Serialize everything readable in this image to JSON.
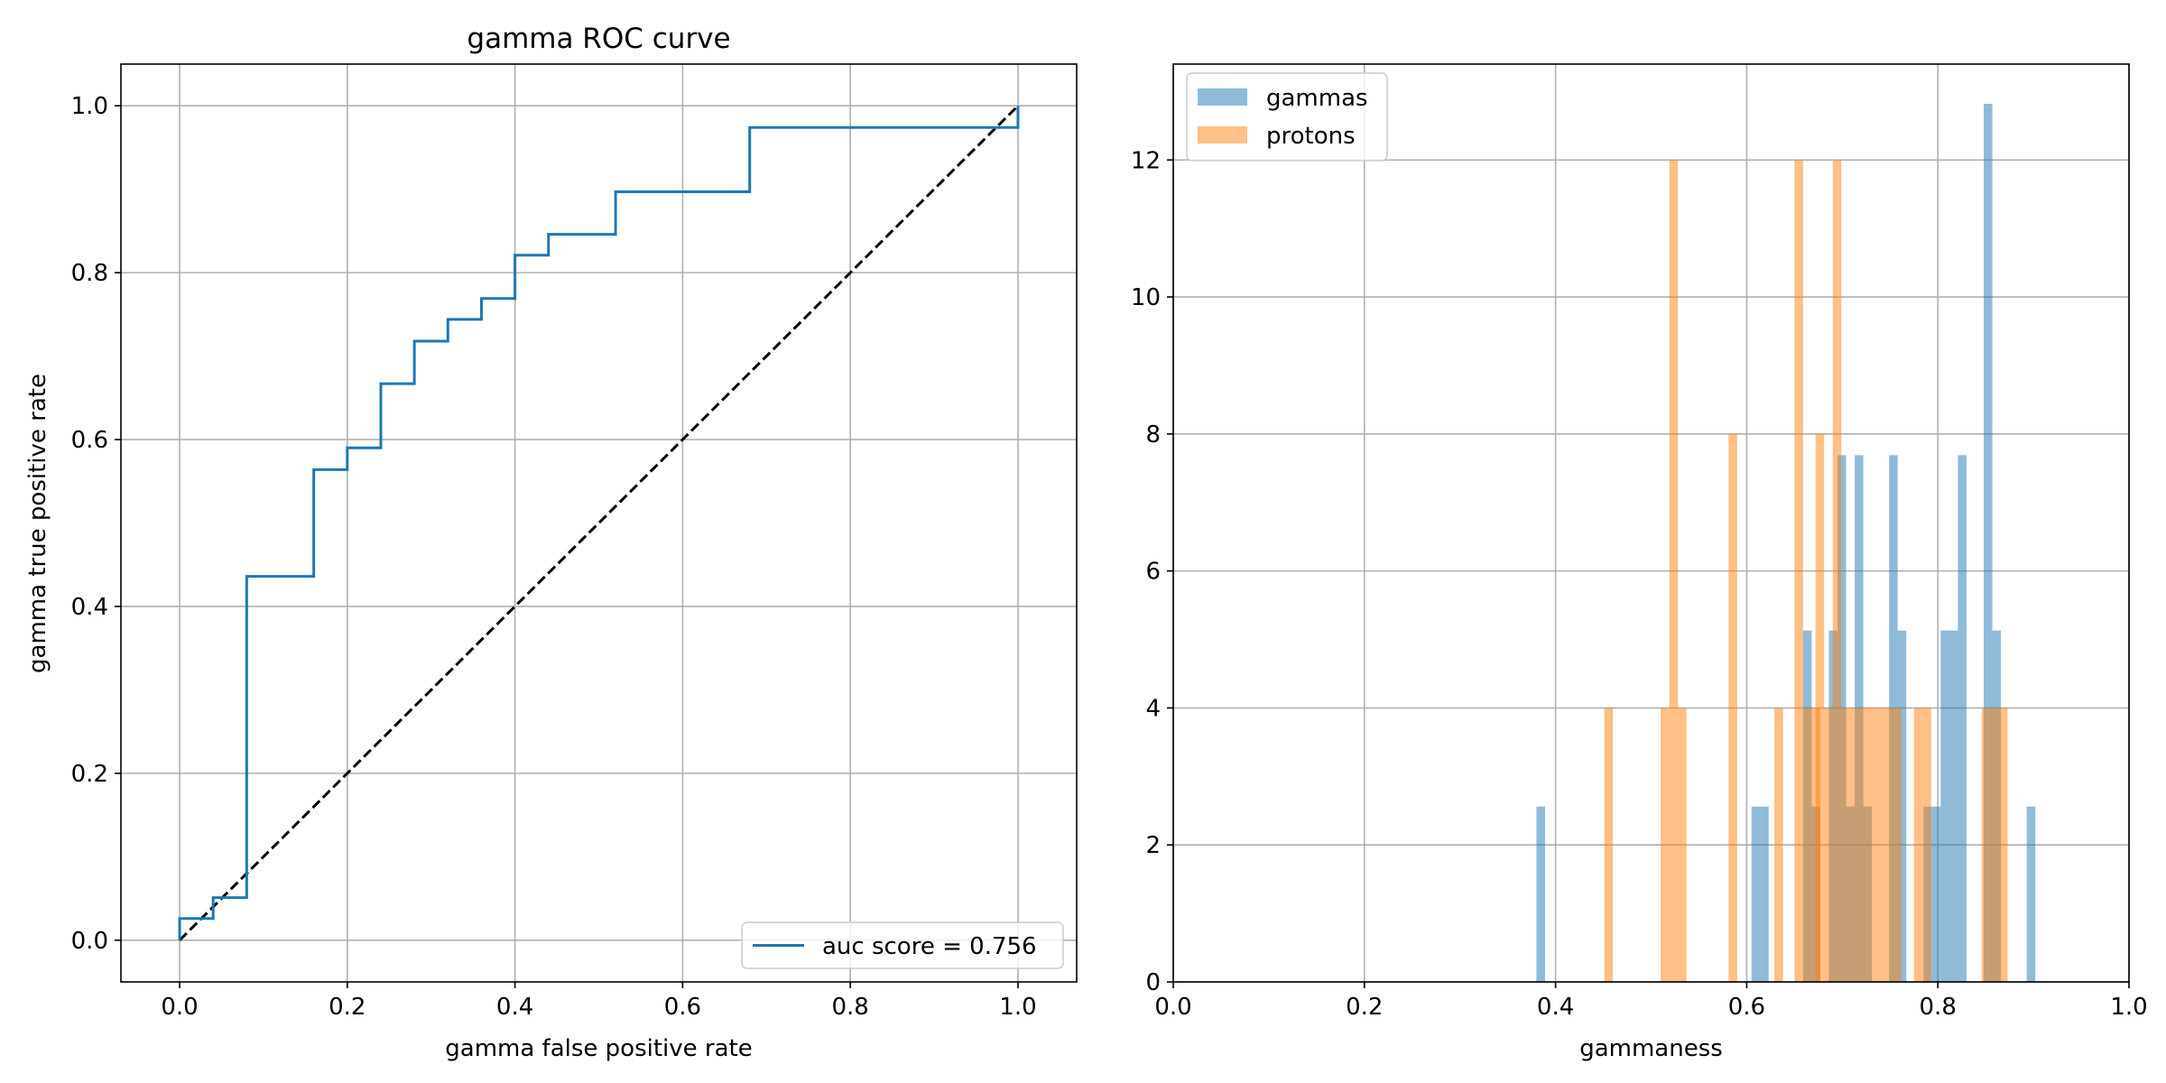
{
  "chart_data": [
    {
      "type": "line",
      "title": "gamma ROC curve",
      "xlabel": "gamma false positive rate",
      "ylabel": "gamma true positive rate",
      "xlim": [
        -0.07,
        1.07
      ],
      "ylim": [
        -0.05,
        1.05
      ],
      "grid": true,
      "xticks": [
        0.0,
        0.2,
        0.4,
        0.6,
        0.8,
        1.0
      ],
      "xtick_labels": [
        "0.0",
        "0.2",
        "0.4",
        "0.6",
        "0.8",
        "1.0"
      ],
      "yticks": [
        0.0,
        0.2,
        0.4,
        0.6,
        0.8,
        1.0
      ],
      "ytick_labels": [
        "0.0",
        "0.2",
        "0.4",
        "0.6",
        "0.8",
        "1.0"
      ],
      "legend_position": "lower-right",
      "series": [
        {
          "name": "auc score = 0.756",
          "color": "#1f77b4",
          "style": "solid",
          "x": [
            0.0,
            0.0,
            0.04,
            0.04,
            0.08,
            0.08,
            0.16,
            0.16,
            0.2,
            0.2,
            0.24,
            0.24,
            0.28,
            0.28,
            0.32,
            0.32,
            0.36,
            0.36,
            0.4,
            0.4,
            0.44,
            0.44,
            0.52,
            0.52,
            0.68,
            0.68,
            1.0,
            1.0
          ],
          "y": [
            0.0,
            0.026,
            0.026,
            0.051,
            0.051,
            0.436,
            0.436,
            0.564,
            0.564,
            0.59,
            0.59,
            0.667,
            0.667,
            0.718,
            0.718,
            0.744,
            0.744,
            0.769,
            0.769,
            0.821,
            0.821,
            0.846,
            0.846,
            0.897,
            0.897,
            0.974,
            0.974,
            1.0
          ]
        },
        {
          "color": "#000000",
          "style": "dashed",
          "x": [
            0.0,
            1.0
          ],
          "y": [
            0.0,
            1.0
          ]
        }
      ]
    },
    {
      "type": "bar",
      "xlabel": "gammaness",
      "xlim": [
        0.0,
        1.0
      ],
      "ylim": [
        0,
        13.4
      ],
      "grid": true,
      "xticks": [
        0.0,
        0.2,
        0.4,
        0.6,
        0.8,
        1.0
      ],
      "xtick_labels": [
        "0.0",
        "0.2",
        "0.4",
        "0.6",
        "0.8",
        "1.0"
      ],
      "yticks": [
        0,
        2,
        4,
        6,
        8,
        10,
        12
      ],
      "ytick_labels": [
        "0",
        "2",
        "4",
        "6",
        "8",
        "10",
        "12"
      ],
      "legend_position": "upper-left",
      "bin_width": 0.009,
      "series": [
        {
          "name": "gammas",
          "color": "#1f77b4",
          "opacity": 0.5,
          "bins": [
            [
              0.38,
              2.56
            ],
            [
              0.605,
              2.56
            ],
            [
              0.614,
              2.56
            ],
            [
              0.659,
              5.13
            ],
            [
              0.668,
              2.56
            ],
            [
              0.686,
              5.13
            ],
            [
              0.695,
              7.69
            ],
            [
              0.704,
              2.56
            ],
            [
              0.713,
              7.69
            ],
            [
              0.722,
              2.56
            ],
            [
              0.749,
              7.69
            ],
            [
              0.758,
              5.13
            ],
            [
              0.785,
              2.56
            ],
            [
              0.794,
              2.56
            ],
            [
              0.803,
              5.13
            ],
            [
              0.812,
              5.13
            ],
            [
              0.821,
              7.69
            ],
            [
              0.848,
              12.82
            ],
            [
              0.857,
              5.13
            ],
            [
              0.893,
              2.56
            ]
          ]
        },
        {
          "name": "protons",
          "color": "#ff7f0e",
          "opacity": 0.5,
          "bins": [
            [
              0.451,
              4
            ],
            [
              0.51,
              4
            ],
            [
              0.519,
              12
            ],
            [
              0.528,
              4
            ],
            [
              0.581,
              8
            ],
            [
              0.629,
              4
            ],
            [
              0.65,
              12
            ],
            [
              0.659,
              4
            ],
            [
              0.668,
              4
            ],
            [
              0.672,
              8
            ],
            [
              0.681,
              4
            ],
            [
              0.69,
              12
            ],
            [
              0.699,
              4
            ],
            [
              0.708,
              4
            ],
            [
              0.717,
              4
            ],
            [
              0.726,
              4
            ],
            [
              0.735,
              4
            ],
            [
              0.744,
              4
            ],
            [
              0.753,
              4
            ],
            [
              0.775,
              4
            ],
            [
              0.784,
              4
            ],
            [
              0.846,
              4
            ],
            [
              0.855,
              4
            ],
            [
              0.864,
              4
            ]
          ]
        }
      ]
    }
  ]
}
